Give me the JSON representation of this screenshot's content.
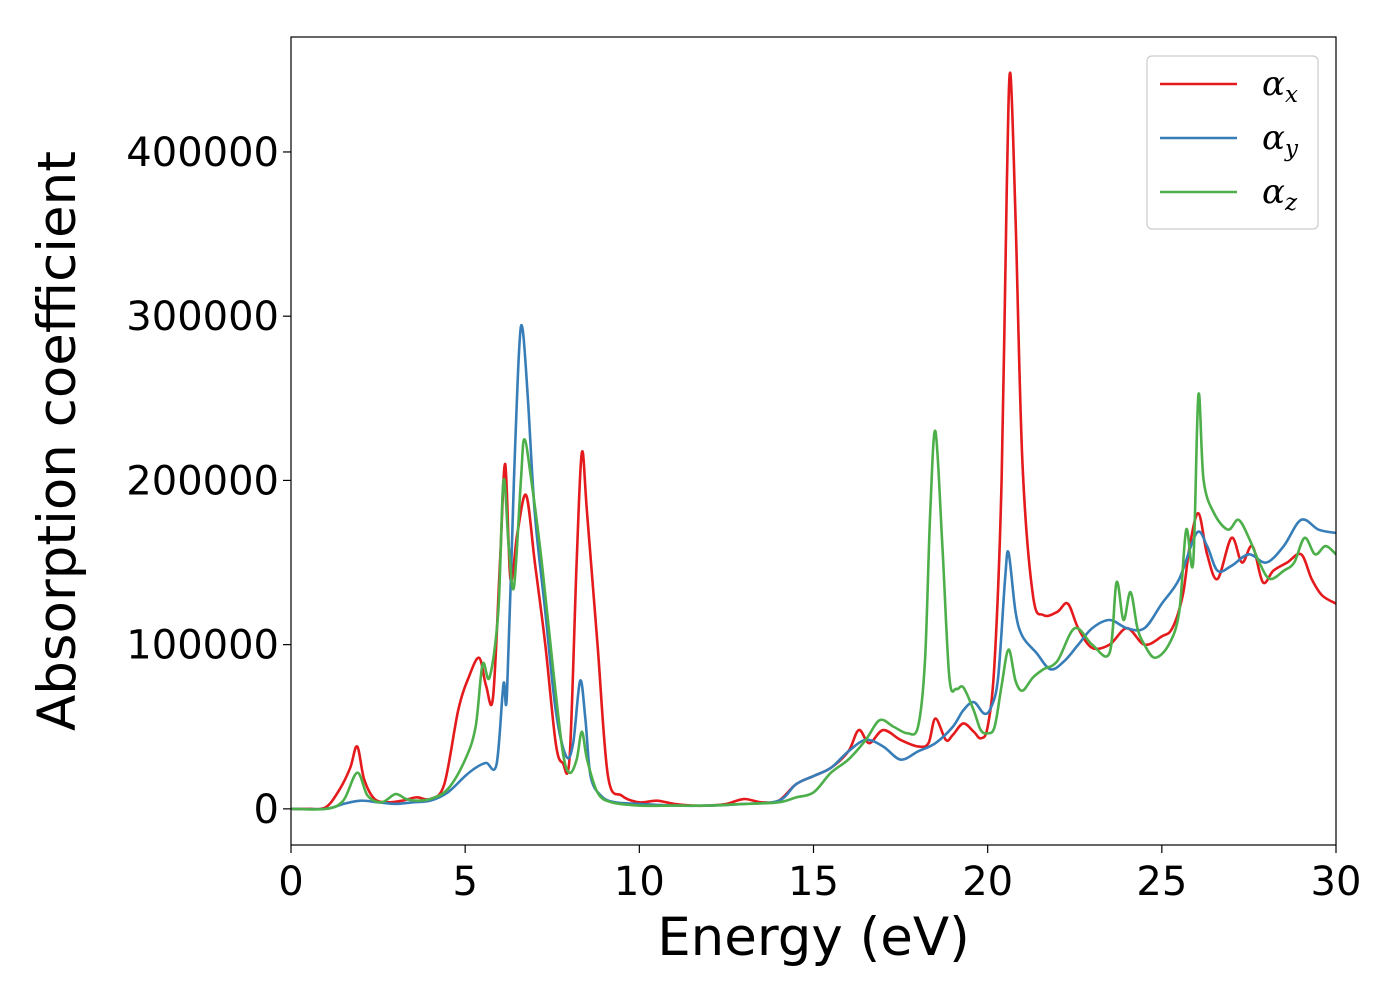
{
  "chart_data": {
    "type": "line",
    "xlabel": "Energy (eV)",
    "ylabel": "Absorption coefficient",
    "xlim": [
      0,
      30
    ],
    "ylim": [
      -22000,
      470000
    ],
    "xticks": [
      0,
      5,
      10,
      15,
      20,
      25,
      30
    ],
    "yticks": [
      0,
      100000,
      200000,
      300000,
      400000
    ],
    "grid": false,
    "legend_position": "top-right",
    "series": [
      {
        "name": "αx",
        "symbol": "α",
        "subscript": "x",
        "color": "#e41a1c",
        "x": [
          0,
          0.5,
          1.0,
          1.4,
          1.7,
          1.9,
          2.1,
          2.4,
          2.8,
          3.2,
          3.6,
          4.0,
          4.4,
          4.8,
          5.1,
          5.4,
          5.6,
          5.8,
          6.0,
          6.15,
          6.3,
          6.5,
          6.75,
          7.0,
          7.3,
          7.6,
          7.8,
          8.0,
          8.2,
          8.35,
          8.5,
          8.8,
          9.1,
          9.5,
          10.0,
          10.5,
          11.0,
          11.5,
          12.0,
          12.5,
          13.0,
          13.5,
          14.0,
          14.5,
          15.0,
          15.5,
          16.0,
          16.3,
          16.6,
          17.0,
          17.5,
          18.0,
          18.3,
          18.5,
          18.8,
          19.0,
          19.3,
          19.6,
          19.8,
          20.0,
          20.2,
          20.4,
          20.55,
          20.65,
          20.8,
          21.0,
          21.3,
          21.6,
          22.0,
          22.3,
          22.6,
          23.0,
          23.5,
          24.0,
          24.5,
          25.0,
          25.3,
          25.6,
          25.8,
          26.05,
          26.3,
          26.6,
          27.0,
          27.3,
          27.6,
          27.9,
          28.2,
          28.6,
          29.0,
          29.3,
          29.6,
          30.0
        ],
        "y": [
          0,
          0,
          1000,
          12000,
          25000,
          38000,
          18000,
          6000,
          4000,
          5000,
          7000,
          6000,
          15000,
          60000,
          80000,
          92000,
          75000,
          68000,
          150000,
          210000,
          140000,
          168000,
          191000,
          150000,
          100000,
          40000,
          28000,
          32000,
          150000,
          217000,
          180000,
          100000,
          20000,
          8000,
          4000,
          5000,
          3000,
          2000,
          2000,
          3000,
          6000,
          4000,
          5000,
          15000,
          20000,
          25000,
          35000,
          48000,
          40000,
          48000,
          42000,
          38000,
          40000,
          55000,
          42000,
          45000,
          52000,
          47000,
          43000,
          50000,
          90000,
          200000,
          380000,
          448000,
          360000,
          210000,
          130000,
          118000,
          120000,
          125000,
          110000,
          98000,
          100000,
          110000,
          100000,
          105000,
          110000,
          130000,
          160000,
          180000,
          155000,
          140000,
          165000,
          150000,
          160000,
          138000,
          145000,
          150000,
          155000,
          140000,
          130000,
          125000
        ]
      },
      {
        "name": "αy",
        "symbol": "α",
        "subscript": "y",
        "color": "#377eb8",
        "x": [
          0,
          1.0,
          1.5,
          2.0,
          2.5,
          3.0,
          3.5,
          4.0,
          4.5,
          5.0,
          5.3,
          5.6,
          5.9,
          6.1,
          6.2,
          6.4,
          6.55,
          6.65,
          6.8,
          7.0,
          7.3,
          7.6,
          7.9,
          8.1,
          8.3,
          8.45,
          8.6,
          8.9,
          9.3,
          10.0,
          11.0,
          12.0,
          13.0,
          14.0,
          14.5,
          15.0,
          15.5,
          16.0,
          16.5,
          17.0,
          17.5,
          18.0,
          18.5,
          19.0,
          19.3,
          19.6,
          19.9,
          20.1,
          20.3,
          20.5,
          20.6,
          20.8,
          21.0,
          21.4,
          21.8,
          22.2,
          22.6,
          23.0,
          23.5,
          24.0,
          24.5,
          25.0,
          25.5,
          26.0,
          26.3,
          26.6,
          27.0,
          27.5,
          28.0,
          28.5,
          29.0,
          29.5,
          30.0
        ],
        "y": [
          0,
          0,
          3000,
          5000,
          4000,
          3000,
          4000,
          5000,
          10000,
          20000,
          25000,
          28000,
          27000,
          76000,
          70000,
          200000,
          280000,
          292000,
          250000,
          180000,
          120000,
          60000,
          32000,
          40000,
          78000,
          55000,
          20000,
          8000,
          4000,
          3000,
          2000,
          2000,
          3000,
          5000,
          15000,
          20000,
          25000,
          35000,
          42000,
          38000,
          30000,
          35000,
          40000,
          50000,
          60000,
          65000,
          58000,
          62000,
          80000,
          140000,
          156000,
          120000,
          105000,
          95000,
          85000,
          90000,
          100000,
          110000,
          115000,
          110000,
          110000,
          125000,
          140000,
          168000,
          160000,
          145000,
          148000,
          155000,
          150000,
          160000,
          176000,
          170000,
          168000
        ]
      },
      {
        "name": "αz",
        "symbol": "α",
        "subscript": "z",
        "color": "#4daf4a",
        "x": [
          0,
          1.0,
          1.5,
          1.9,
          2.2,
          2.6,
          3.0,
          3.3,
          3.6,
          4.0,
          4.5,
          5.0,
          5.3,
          5.5,
          5.7,
          5.95,
          6.1,
          6.25,
          6.4,
          6.6,
          6.7,
          6.9,
          7.2,
          7.5,
          7.8,
          8.0,
          8.2,
          8.35,
          8.5,
          8.8,
          9.2,
          10.0,
          11.0,
          12.0,
          13.0,
          14.0,
          14.5,
          15.0,
          15.5,
          16.0,
          16.5,
          16.9,
          17.3,
          17.7,
          18.0,
          18.2,
          18.35,
          18.5,
          18.7,
          18.9,
          19.1,
          19.3,
          19.6,
          19.8,
          20.0,
          20.2,
          20.4,
          20.6,
          20.8,
          21.0,
          21.3,
          21.6,
          22.0,
          22.5,
          23.0,
          23.5,
          23.7,
          23.9,
          24.1,
          24.3,
          24.5,
          24.8,
          25.2,
          25.5,
          25.7,
          25.9,
          26.05,
          26.2,
          26.5,
          26.9,
          27.2,
          27.5,
          27.8,
          28.1,
          28.5,
          28.8,
          29.1,
          29.4,
          29.7,
          30.0
        ],
        "y": [
          0,
          0,
          5000,
          22000,
          8000,
          4000,
          9000,
          6000,
          5000,
          6000,
          12000,
          30000,
          50000,
          88000,
          80000,
          120000,
          200000,
          160000,
          135000,
          200000,
          225000,
          200000,
          150000,
          90000,
          35000,
          22000,
          30000,
          47000,
          30000,
          10000,
          4000,
          2000,
          2000,
          2000,
          3000,
          4000,
          7000,
          10000,
          22000,
          30000,
          42000,
          54000,
          50000,
          46000,
          50000,
          90000,
          180000,
          230000,
          160000,
          80000,
          73000,
          74000,
          60000,
          48000,
          46000,
          50000,
          75000,
          97000,
          78000,
          72000,
          80000,
          85000,
          90000,
          110000,
          100000,
          95000,
          138000,
          115000,
          132000,
          110000,
          100000,
          92000,
          100000,
          120000,
          170000,
          150000,
          252000,
          200000,
          180000,
          170000,
          176000,
          165000,
          150000,
          140000,
          145000,
          150000,
          165000,
          155000,
          160000,
          155000
        ]
      }
    ]
  }
}
